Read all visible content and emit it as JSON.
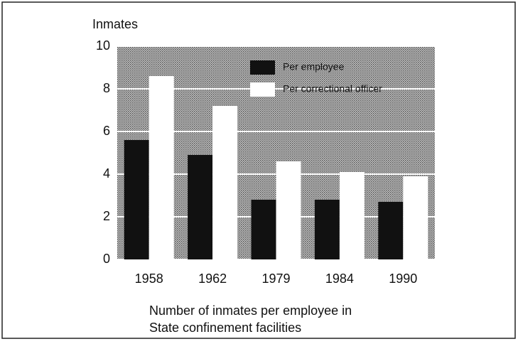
{
  "chart_data": {
    "type": "bar",
    "y_axis_label": "Inmates",
    "caption": [
      "Number of inmates per employee in",
      "State confinement facilities"
    ],
    "categories": [
      "1958",
      "1962",
      "1979",
      "1984",
      "1990"
    ],
    "series": [
      {
        "name": "Per employee",
        "color": "#111111",
        "values": [
          5.6,
          4.9,
          2.8,
          2.8,
          2.7
        ]
      },
      {
        "name": "Per correctional officer",
        "color": "#ffffff",
        "values": [
          8.6,
          7.2,
          4.6,
          4.1,
          3.9
        ]
      }
    ],
    "ylim": [
      0,
      10
    ],
    "yticks": [
      0,
      2,
      4,
      6,
      8,
      10
    ],
    "grid": true,
    "legend": "top-right"
  }
}
